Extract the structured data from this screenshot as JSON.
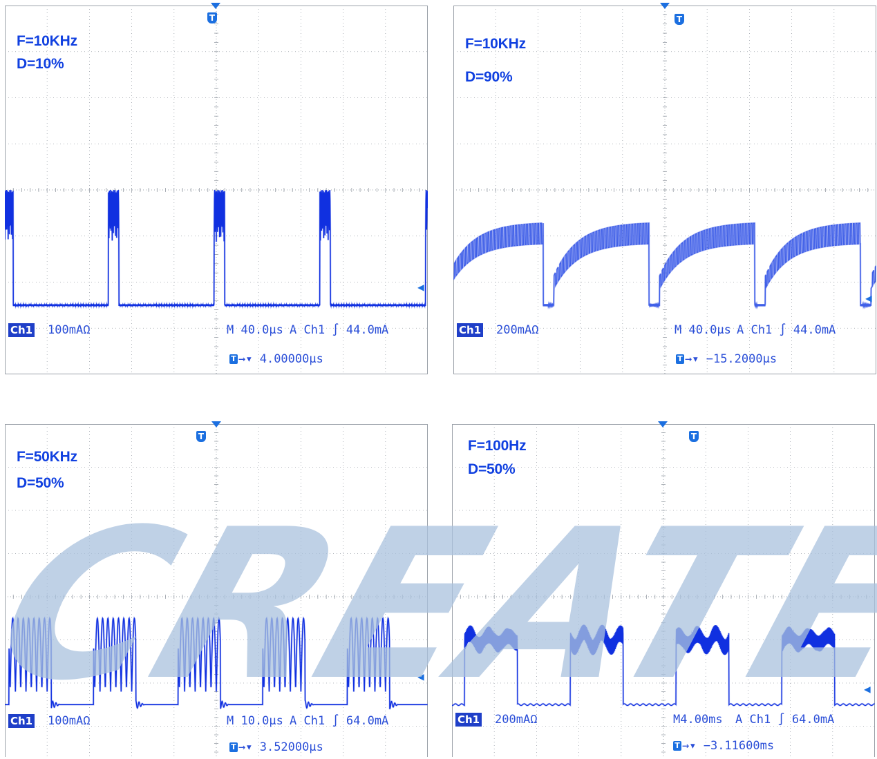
{
  "chart_data": [
    {
      "type": "line",
      "title": "",
      "annotations": [
        "F=10KHz",
        "D=10%"
      ],
      "frequency_hz": 10000,
      "duty_percent": 10,
      "time_per_div_us": 40.0,
      "divisions": {
        "x": 10,
        "y": 8
      },
      "x_range_us": [
        -200,
        200
      ],
      "channel": "Ch1",
      "scale": "100mA",
      "scale_suffix": "Ω",
      "timebase": "M 40.0µs",
      "trigger": "A  Ch1  ∫  44.0mA",
      "trigger_offset": "4.00000µs",
      "baseline_level_div": -2.5,
      "pulse_high_div": 0.0,
      "grid": true
    },
    {
      "type": "line",
      "title": "",
      "annotations": [
        "F=10KHz",
        "D=90%"
      ],
      "frequency_hz": 10000,
      "duty_percent": 90,
      "time_per_div_us": 40.0,
      "divisions": {
        "x": 10,
        "y": 8
      },
      "x_range_us": [
        -200,
        200
      ],
      "channel": "Ch1",
      "scale": "200mA",
      "scale_suffix": "Ω",
      "timebase": "M 40.0µs",
      "trigger": "A  Ch1  ∫  44.0mA",
      "trigger_offset": "−15.2000µs",
      "baseline_level_div": -2.5,
      "pulse_high_div": -0.7,
      "grid": true
    },
    {
      "type": "line",
      "title": "",
      "annotations": [
        "F=50KHz",
        "D=50%"
      ],
      "frequency_hz": 50000,
      "duty_percent": 50,
      "time_per_div_us": 10.0,
      "divisions": {
        "x": 10,
        "y": 8
      },
      "x_range_us": [
        -50,
        50
      ],
      "channel": "Ch1",
      "scale": "100mA",
      "scale_suffix": "Ω",
      "timebase": "M 10.0µs",
      "trigger": "A  Ch1  ∫  64.0mA",
      "trigger_offset": "3.52000µs",
      "baseline_level_div": -2.5,
      "pulse_high_div": -0.5,
      "grid": true
    },
    {
      "type": "line",
      "title": "",
      "annotations": [
        "F=100Hz",
        "D=50%"
      ],
      "frequency_hz": 100,
      "duty_percent": 50,
      "time_per_div_us": 4000,
      "divisions": {
        "x": 10,
        "y": 8
      },
      "x_range_us": [
        -20000,
        20000
      ],
      "channel": "Ch1",
      "scale": "200mA",
      "scale_suffix": "Ω",
      "timebase": "M4.00ms",
      "trigger": "A  Ch1  ∫  64.0mA",
      "trigger_offset": "−3.11600ms",
      "baseline_level_div": -2.5,
      "pulse_high_div": -1.0,
      "grid": true
    }
  ],
  "colors": {
    "trace": "#1030e0",
    "trace_dense": "#4060e8",
    "grid": "#9aa0a8",
    "label": "#1040e0",
    "marker": "#1b6fe0",
    "watermark": "#aac2de"
  },
  "icons": {
    "trigger_marker": "trigger-t-icon",
    "level_arrow": "left-arrow-icon"
  },
  "watermark": {
    "text": "CREATE"
  }
}
